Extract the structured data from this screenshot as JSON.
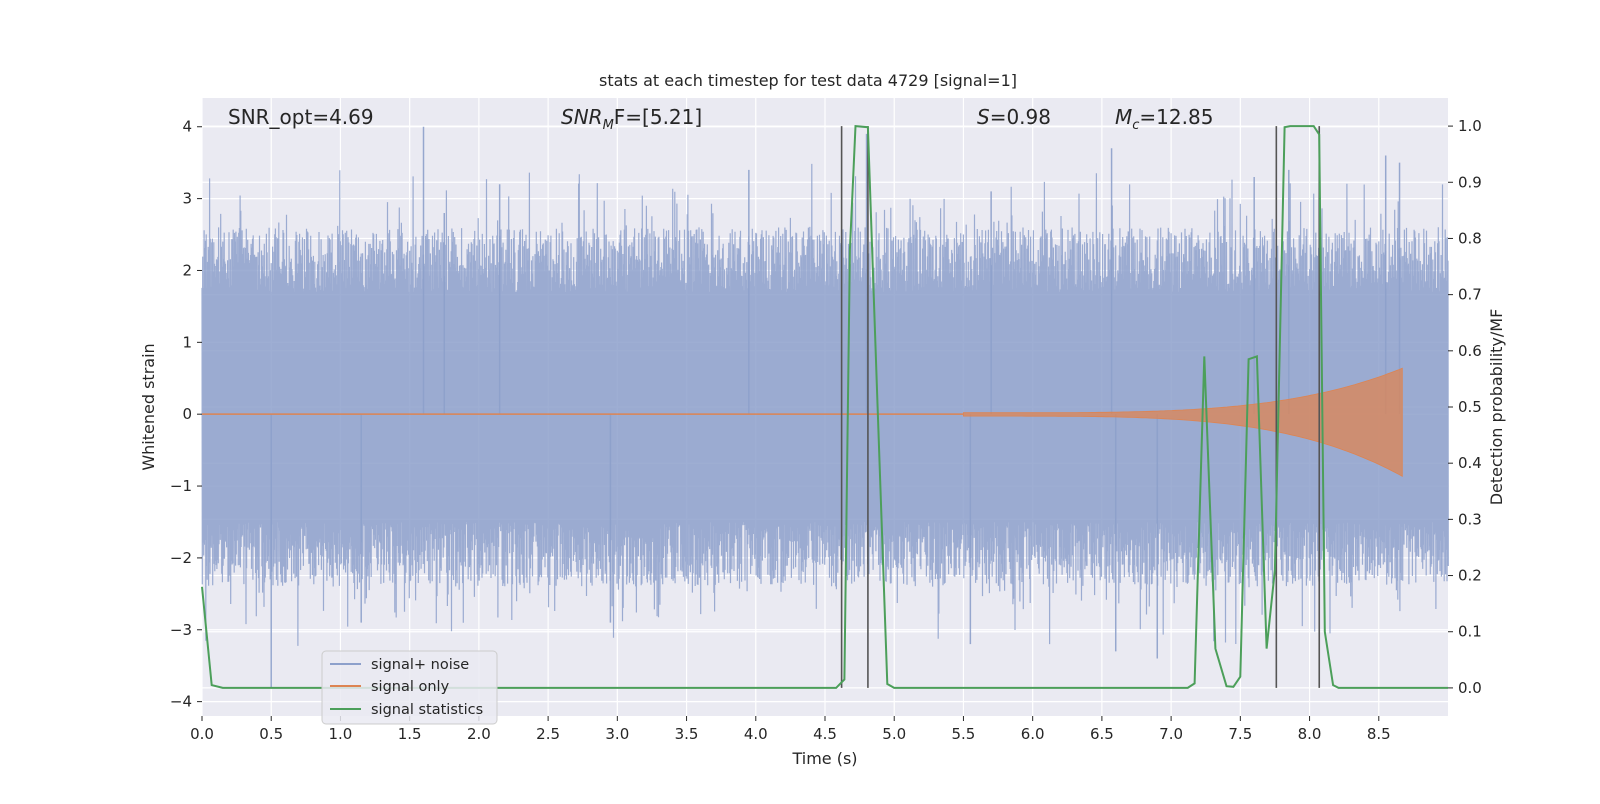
{
  "chart_data": {
    "type": "line",
    "title": "stats at each timestep for test data 4729 [signal=1]",
    "xlabel": "Time (s)",
    "ylabel": "Whitened strain",
    "ylabel_right": "Detection probability/MF",
    "xlim": [
      0.0,
      9.0
    ],
    "ylim": [
      -4.2,
      4.4
    ],
    "ylim_right": [
      -0.05,
      1.05
    ],
    "x_ticks": [
      "0.0",
      "0.5",
      "1.0",
      "1.5",
      "2.0",
      "2.5",
      "3.0",
      "3.5",
      "4.0",
      "4.5",
      "5.0",
      "5.5",
      "6.0",
      "6.5",
      "7.0",
      "7.5",
      "8.0",
      "8.5"
    ],
    "y_ticks": [
      "4",
      "3",
      "2",
      "1",
      "0",
      "−1",
      "−2",
      "−3",
      "−4"
    ],
    "y_right_ticks": [
      "1.0",
      "0.9",
      "0.8",
      "0.7",
      "0.6",
      "0.5",
      "0.4",
      "0.3",
      "0.2",
      "0.1",
      "0.0"
    ],
    "grid": true,
    "legend_position": "lower-left",
    "annotations": {
      "snr_opt": "SNR_opt=4.69",
      "snr_mf_base": "SNR",
      "snr_mf_sub": "M",
      "snr_mf_rest": "F=[5.21]",
      "s_base": "S",
      "s_rest": "=0.98",
      "mc_base": "M",
      "mc_sub": "c",
      "mc_rest": "=12.85"
    },
    "vertical_lines": [
      4.62,
      4.81,
      7.76,
      8.07
    ],
    "series": [
      {
        "name": "signal+ noise",
        "color": "#8da0cb",
        "noise_band": [
          -1.5,
          1.7
        ],
        "spikes": [
          [
            0.5,
            -3.8
          ],
          [
            1.6,
            4.0
          ],
          [
            2.15,
            3.2
          ],
          [
            3.95,
            3.4
          ],
          [
            4.8,
            3.9
          ],
          [
            6.57,
            3.7
          ],
          [
            6.6,
            -3.3
          ],
          [
            6.9,
            -3.4
          ],
          [
            7.6,
            3.3
          ],
          [
            7.85,
            3.4
          ],
          [
            8.55,
            3.6
          ],
          [
            8.65,
            3.5
          ],
          [
            5.55,
            -3.2
          ],
          [
            1.15,
            -2.9
          ],
          [
            2.95,
            -2.9
          ],
          [
            1.75,
            2.8
          ],
          [
            5.7,
            3.1
          ]
        ]
      },
      {
        "name": "signal only",
        "color": "#dd8452",
        "chirp_start": 5.5,
        "chirp_end": 8.67,
        "peak_amplitude": 0.62
      },
      {
        "name": "signal statistics",
        "color": "#4c9f5a",
        "x": [
          0.0,
          0.07,
          0.15,
          0.5,
          1.0,
          2.0,
          3.0,
          4.0,
          4.5,
          4.58,
          4.64,
          4.68,
          4.72,
          4.81,
          4.88,
          4.95,
          5.0,
          5.5,
          6.0,
          6.5,
          7.0,
          7.12,
          7.17,
          7.24,
          7.32,
          7.4,
          7.45,
          7.5,
          7.56,
          7.62,
          7.69,
          7.75,
          7.82,
          7.86,
          7.95,
          8.03,
          8.07,
          8.11,
          8.17,
          8.21,
          8.5,
          9.0
        ],
        "y": [
          0.18,
          0.005,
          0.0,
          0.0,
          0.0,
          0.0,
          0.0,
          0.0,
          0.0,
          0.0,
          0.015,
          0.78,
          1.0,
          0.998,
          0.5,
          0.007,
          0.0,
          0.0,
          0.0,
          0.0,
          0.0,
          0.0,
          0.008,
          0.59,
          0.07,
          0.003,
          0.002,
          0.02,
          0.585,
          0.59,
          0.07,
          0.21,
          0.998,
          1.0,
          1.0,
          1.0,
          0.985,
          0.1,
          0.005,
          0.0,
          0.0,
          0.0
        ]
      }
    ]
  }
}
